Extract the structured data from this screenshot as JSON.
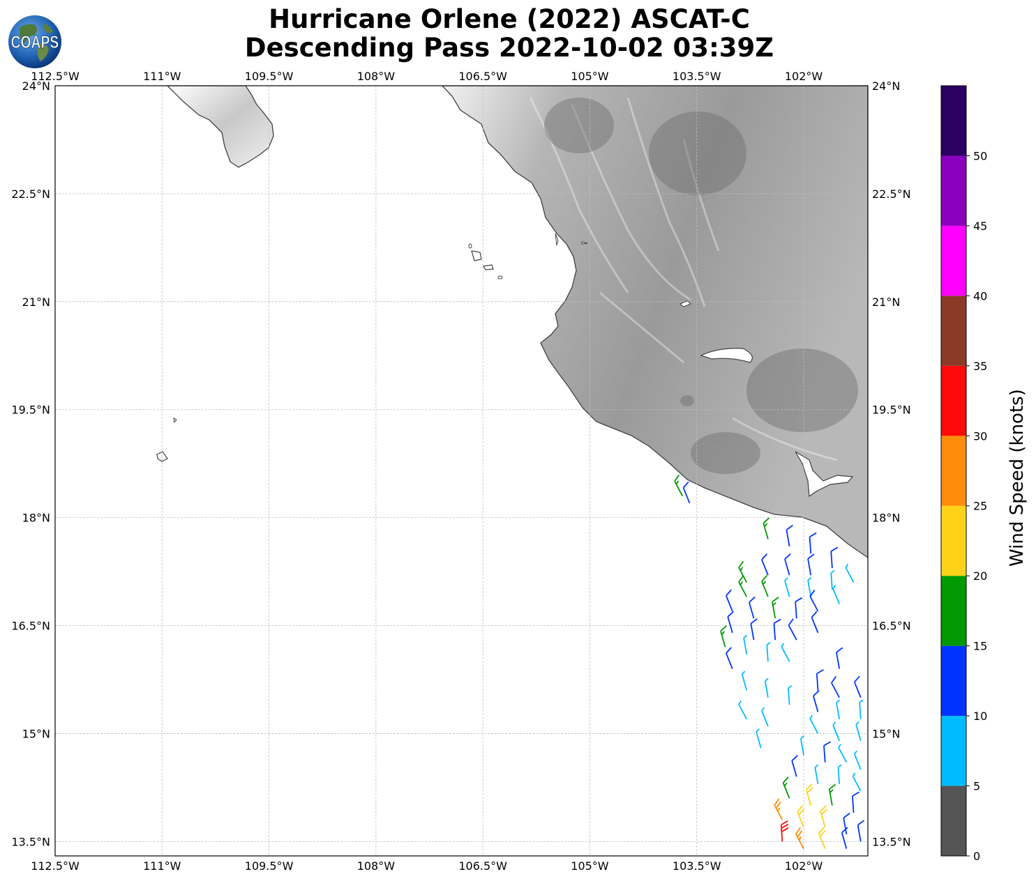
{
  "title": {
    "line1": "Hurricane Orlene (2022) ASCAT-C",
    "line2": "Descending Pass 2022-10-02 03:39Z"
  },
  "logo": {
    "text": "COAPS"
  },
  "map": {
    "lon_range": [
      -112.5,
      -101.1
    ],
    "lat_range": [
      13.3,
      24.0
    ],
    "lon_ticks": [
      "112.5°W",
      "111°W",
      "109.5°W",
      "108°W",
      "106.5°W",
      "105°W",
      "103.5°W",
      "102°W"
    ],
    "lat_ticks": [
      "24°N",
      "22.5°N",
      "21°N",
      "19.5°N",
      "18°N",
      "16.5°N",
      "15°N",
      "13.5°N"
    ],
    "gridlines": true,
    "terrain_shading": "grayscale"
  },
  "colorbar": {
    "label": "Wind Speed (knots)",
    "ticks": [
      "0",
      "5",
      "10",
      "15",
      "20",
      "25",
      "30",
      "35",
      "40",
      "45",
      "50"
    ],
    "bins": [
      {
        "min": 0,
        "max": 5,
        "color": "#555555"
      },
      {
        "min": 5,
        "max": 10,
        "color": "#00bbff"
      },
      {
        "min": 10,
        "max": 15,
        "color": "#0033ff"
      },
      {
        "min": 15,
        "max": 20,
        "color": "#009900"
      },
      {
        "min": 20,
        "max": 25,
        "color": "#ffd21a"
      },
      {
        "min": 25,
        "max": 30,
        "color": "#ff8c0a"
      },
      {
        "min": 30,
        "max": 35,
        "color": "#ff0a0a"
      },
      {
        "min": 35,
        "max": 40,
        "color": "#8b3a28"
      },
      {
        "min": 40,
        "max": 45,
        "color": "#ff00ff"
      },
      {
        "min": 45,
        "max": 50,
        "color": "#8800bb"
      },
      {
        "min": 50,
        "max": 55,
        "color": "#2a0060"
      }
    ]
  },
  "wind_barbs_sample": [
    {
      "lon": -103.7,
      "lat": 18.3,
      "speed": 17
    },
    {
      "lon": -103.6,
      "lat": 18.2,
      "speed": 12
    },
    {
      "lon": -102.5,
      "lat": 17.7,
      "speed": 17
    },
    {
      "lon": -102.2,
      "lat": 17.6,
      "speed": 12
    },
    {
      "lon": -101.9,
      "lat": 17.5,
      "speed": 12
    },
    {
      "lon": -102.8,
      "lat": 17.1,
      "speed": 17
    },
    {
      "lon": -102.5,
      "lat": 17.2,
      "speed": 12
    },
    {
      "lon": -102.2,
      "lat": 17.2,
      "speed": 12
    },
    {
      "lon": -101.9,
      "lat": 17.2,
      "speed": 12
    },
    {
      "lon": -101.6,
      "lat": 17.3,
      "speed": 12
    },
    {
      "lon": -102.8,
      "lat": 16.9,
      "speed": 17
    },
    {
      "lon": -102.5,
      "lat": 16.9,
      "speed": 17
    },
    {
      "lon": -102.2,
      "lat": 16.9,
      "speed": 8
    },
    {
      "lon": -101.9,
      "lat": 16.9,
      "speed": 8
    },
    {
      "lon": -101.6,
      "lat": 17.0,
      "speed": 8
    },
    {
      "lon": -101.3,
      "lat": 17.1,
      "speed": 8
    },
    {
      "lon": -103.0,
      "lat": 16.7,
      "speed": 12
    },
    {
      "lon": -102.7,
      "lat": 16.6,
      "speed": 12
    },
    {
      "lon": -102.4,
      "lat": 16.6,
      "speed": 17
    },
    {
      "lon": -102.1,
      "lat": 16.6,
      "speed": 12
    },
    {
      "lon": -101.8,
      "lat": 16.7,
      "speed": 12
    },
    {
      "lon": -101.5,
      "lat": 16.8,
      "speed": 8
    },
    {
      "lon": -103.0,
      "lat": 16.4,
      "speed": 12
    },
    {
      "lon": -102.7,
      "lat": 16.3,
      "speed": 12
    },
    {
      "lon": -102.4,
      "lat": 16.3,
      "speed": 12
    },
    {
      "lon": -102.1,
      "lat": 16.3,
      "speed": 12
    },
    {
      "lon": -101.8,
      "lat": 16.4,
      "speed": 12
    },
    {
      "lon": -103.1,
      "lat": 16.2,
      "speed": 17
    },
    {
      "lon": -102.8,
      "lat": 16.1,
      "speed": 8
    },
    {
      "lon": -102.5,
      "lat": 16.0,
      "speed": 8
    },
    {
      "lon": -102.2,
      "lat": 16.0,
      "speed": 8
    },
    {
      "lon": -103.0,
      "lat": 15.9,
      "speed": 12
    },
    {
      "lon": -102.8,
      "lat": 15.6,
      "speed": 8
    },
    {
      "lon": -102.5,
      "lat": 15.5,
      "speed": 8
    },
    {
      "lon": -102.2,
      "lat": 15.4,
      "speed": 8
    },
    {
      "lon": -102.8,
      "lat": 15.2,
      "speed": 8
    },
    {
      "lon": -102.5,
      "lat": 15.1,
      "speed": 8
    },
    {
      "lon": -102.6,
      "lat": 14.8,
      "speed": 8
    },
    {
      "lon": -101.5,
      "lat": 15.9,
      "speed": 12
    },
    {
      "lon": -101.8,
      "lat": 15.6,
      "speed": 12
    },
    {
      "lon": -101.5,
      "lat": 15.5,
      "speed": 12
    },
    {
      "lon": -101.2,
      "lat": 15.5,
      "speed": 12
    },
    {
      "lon": -101.8,
      "lat": 15.3,
      "speed": 12
    },
    {
      "lon": -101.5,
      "lat": 15.2,
      "speed": 8
    },
    {
      "lon": -101.2,
      "lat": 15.2,
      "speed": 8
    },
    {
      "lon": -101.8,
      "lat": 15.0,
      "speed": 8
    },
    {
      "lon": -101.5,
      "lat": 14.9,
      "speed": 8
    },
    {
      "lon": -101.2,
      "lat": 14.9,
      "speed": 8
    },
    {
      "lon": -102.0,
      "lat": 14.7,
      "speed": 8
    },
    {
      "lon": -101.7,
      "lat": 14.6,
      "speed": 12
    },
    {
      "lon": -101.4,
      "lat": 14.6,
      "speed": 8
    },
    {
      "lon": -101.2,
      "lat": 14.5,
      "speed": 8
    },
    {
      "lon": -102.1,
      "lat": 14.4,
      "speed": 12
    },
    {
      "lon": -101.8,
      "lat": 14.3,
      "speed": 8
    },
    {
      "lon": -101.5,
      "lat": 14.3,
      "speed": 8
    },
    {
      "lon": -101.2,
      "lat": 14.2,
      "speed": 8
    },
    {
      "lon": -102.2,
      "lat": 14.1,
      "speed": 17
    },
    {
      "lon": -101.9,
      "lat": 14.0,
      "speed": 22
    },
    {
      "lon": -101.6,
      "lat": 14.0,
      "speed": 17
    },
    {
      "lon": -101.3,
      "lat": 13.9,
      "speed": 12
    },
    {
      "lon": -102.3,
      "lat": 13.8,
      "speed": 27
    },
    {
      "lon": -102.0,
      "lat": 13.7,
      "speed": 22
    },
    {
      "lon": -101.7,
      "lat": 13.7,
      "speed": 22
    },
    {
      "lon": -101.4,
      "lat": 13.6,
      "speed": 12
    },
    {
      "lon": -102.3,
      "lat": 13.5,
      "speed": 32
    },
    {
      "lon": -102.0,
      "lat": 13.4,
      "speed": 27
    },
    {
      "lon": -101.7,
      "lat": 13.4,
      "speed": 22
    },
    {
      "lon": -101.4,
      "lat": 13.4,
      "speed": 12
    },
    {
      "lon": -101.2,
      "lat": 13.5,
      "speed": 12
    }
  ]
}
